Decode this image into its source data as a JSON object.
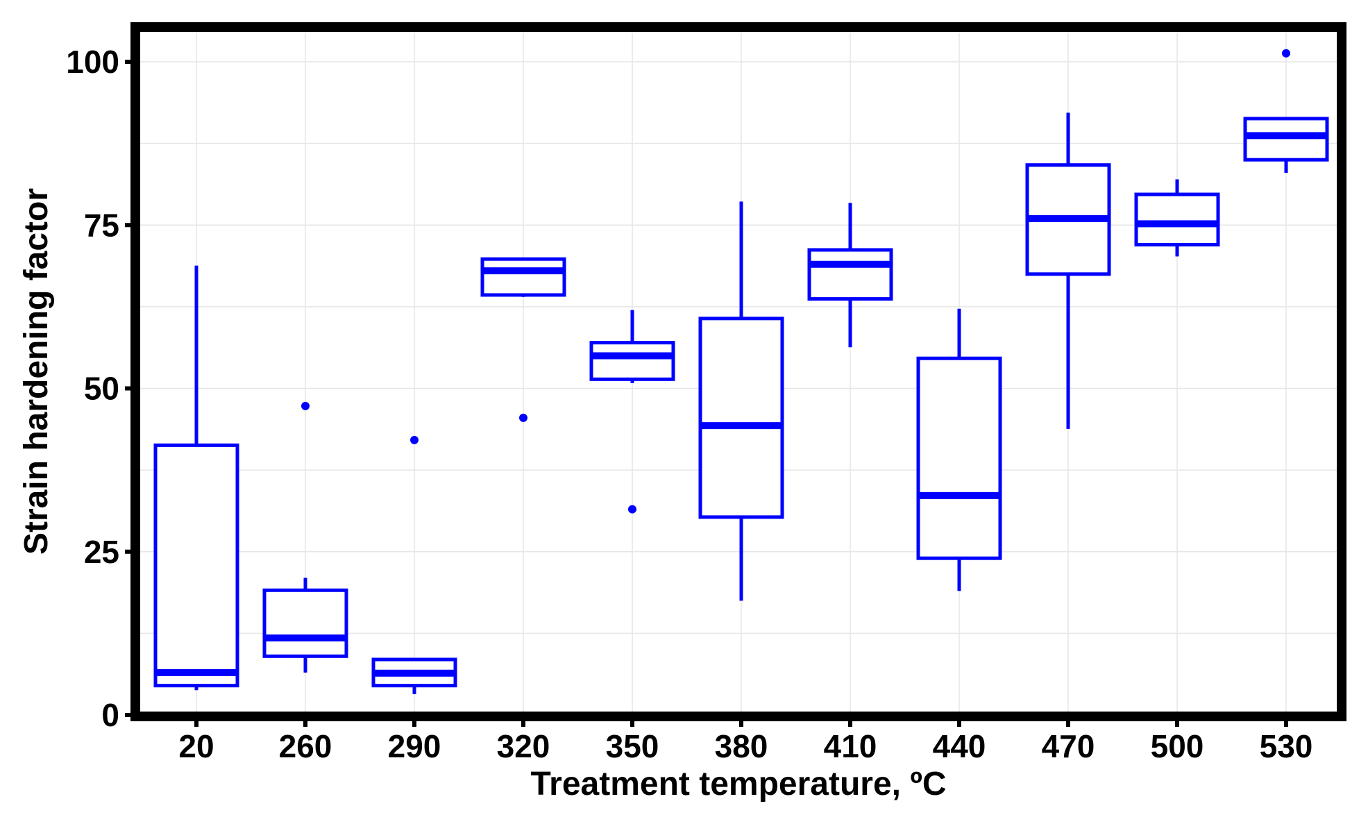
{
  "chart_data": {
    "type": "boxplot",
    "xlabel": "Treatment temperature, ºC",
    "ylabel": "Strain hardening factor",
    "ylim": [
      0,
      105
    ],
    "yticks": [
      0,
      25,
      50,
      75,
      100
    ],
    "grid": true,
    "color": "#0000ff",
    "categories": [
      "20",
      "260",
      "290",
      "320",
      "350",
      "380",
      "410",
      "440",
      "470",
      "500",
      "530"
    ],
    "boxes": [
      {
        "whisker_low": 3.8,
        "q1": 4.5,
        "median": 6.5,
        "q3": 41.3,
        "whisker_high": 68.8,
        "outliers": []
      },
      {
        "whisker_low": 6.5,
        "q1": 9.0,
        "median": 11.8,
        "q3": 19.1,
        "whisker_high": 21.0,
        "outliers": [
          47.3
        ]
      },
      {
        "whisker_low": 3.2,
        "q1": 4.5,
        "median": 6.4,
        "q3": 8.5,
        "whisker_high": 8.5,
        "outliers": [
          42.1
        ]
      },
      {
        "whisker_low": 64.0,
        "q1": 64.3,
        "median": 68.0,
        "q3": 69.8,
        "whisker_high": 69.8,
        "outliers": [
          45.5
        ]
      },
      {
        "whisker_low": 50.8,
        "q1": 51.4,
        "median": 55.0,
        "q3": 57.0,
        "whisker_high": 62.0,
        "outliers": [
          31.5
        ]
      },
      {
        "whisker_low": 17.5,
        "q1": 30.3,
        "median": 44.3,
        "q3": 60.7,
        "whisker_high": 78.6,
        "outliers": []
      },
      {
        "whisker_low": 56.3,
        "q1": 63.7,
        "median": 69.0,
        "q3": 71.2,
        "whisker_high": 78.4,
        "outliers": []
      },
      {
        "whisker_low": 19.0,
        "q1": 24.0,
        "median": 33.6,
        "q3": 54.6,
        "whisker_high": 62.2,
        "outliers": []
      },
      {
        "whisker_low": 43.8,
        "q1": 67.5,
        "median": 76.0,
        "q3": 84.2,
        "whisker_high": 92.2,
        "outliers": []
      },
      {
        "whisker_low": 70.2,
        "q1": 72.0,
        "median": 75.2,
        "q3": 79.7,
        "whisker_high": 82.0,
        "outliers": []
      },
      {
        "whisker_low": 83.0,
        "q1": 85.0,
        "median": 88.7,
        "q3": 91.3,
        "whisker_high": 91.3,
        "outliers": [
          101.3
        ]
      }
    ]
  }
}
